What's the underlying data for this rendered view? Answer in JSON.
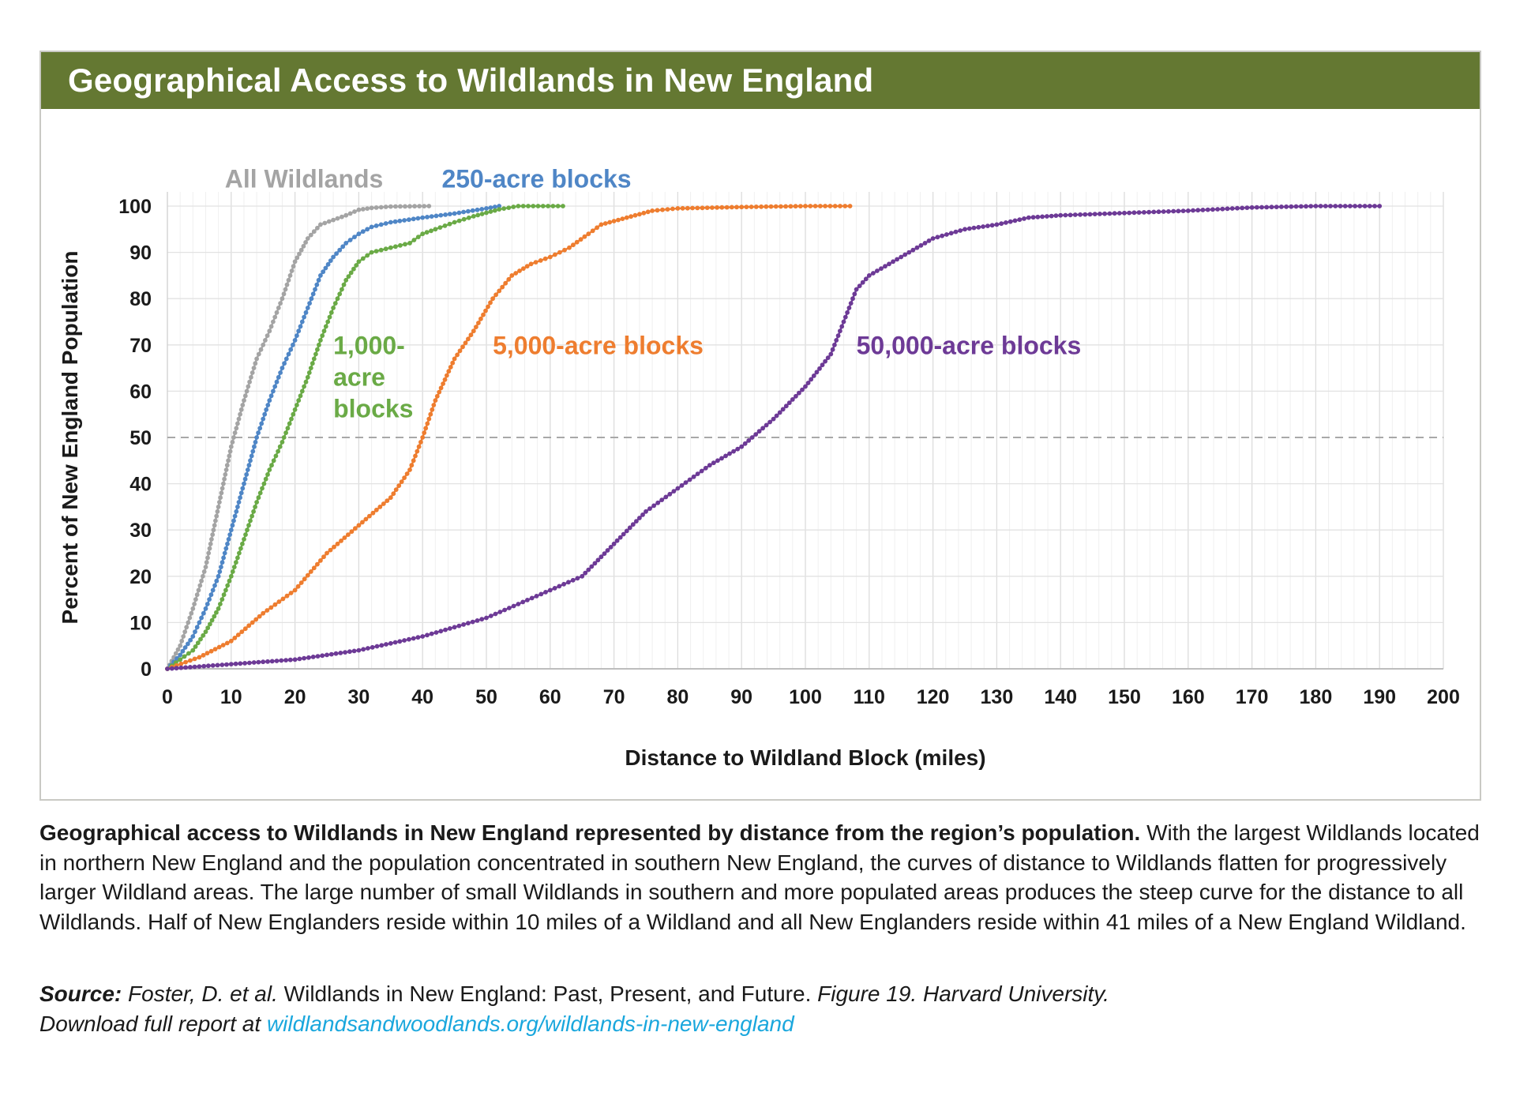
{
  "title": "Geographical Access to Wildlands in New England",
  "colors": {
    "title_bar": "#647832",
    "all_wildlands": "#a4a4a4",
    "b250": "#4f86c6",
    "b1000": "#6aaa46",
    "b5000": "#ee7d2f",
    "b50000": "#6d3a96",
    "link": "#1aa7dd"
  },
  "chart_data": {
    "type": "line",
    "title": "Geographical Access to Wildlands in New England",
    "xlabel": "Distance to Wildland Block (miles)",
    "ylabel": "Percent of New England Population",
    "xlim": [
      0,
      200
    ],
    "ylim": [
      0,
      100
    ],
    "x_ticks": [
      "0",
      "10",
      "20",
      "30",
      "40",
      "50",
      "60",
      "70",
      "80",
      "90",
      "100",
      "110",
      "120",
      "130",
      "140",
      "150",
      "160",
      "170",
      "180",
      "190",
      "200"
    ],
    "y_ticks": [
      "0",
      "10",
      "20",
      "30",
      "40",
      "50",
      "60",
      "70",
      "80",
      "90",
      "100"
    ],
    "grid": true,
    "reference_line": {
      "y": 50,
      "style": "dashed"
    },
    "series": [
      {
        "name": "All Wildlands",
        "label_lines": [
          "All Wildlands"
        ],
        "color": "#a4a4a4",
        "points": [
          [
            0,
            0
          ],
          [
            2,
            5
          ],
          [
            4,
            13
          ],
          [
            6,
            22
          ],
          [
            8,
            35
          ],
          [
            10,
            48
          ],
          [
            12,
            58
          ],
          [
            14,
            67
          ],
          [
            16,
            73
          ],
          [
            18,
            80
          ],
          [
            20,
            88
          ],
          [
            22,
            93
          ],
          [
            24,
            96
          ],
          [
            26,
            97
          ],
          [
            28,
            98
          ],
          [
            30,
            99.2
          ],
          [
            32,
            99.6
          ],
          [
            35,
            99.9
          ],
          [
            41,
            100
          ]
        ]
      },
      {
        "name": "250-acre blocks",
        "label_lines": [
          "250-acre blocks"
        ],
        "color": "#4f86c6",
        "points": [
          [
            0,
            0
          ],
          [
            2,
            3
          ],
          [
            4,
            7
          ],
          [
            6,
            13
          ],
          [
            8,
            20
          ],
          [
            10,
            30
          ],
          [
            12,
            40
          ],
          [
            14,
            50
          ],
          [
            16,
            58
          ],
          [
            18,
            65
          ],
          [
            20,
            71
          ],
          [
            22,
            78
          ],
          [
            24,
            85
          ],
          [
            26,
            89
          ],
          [
            28,
            92
          ],
          [
            30,
            94
          ],
          [
            32,
            95.5
          ],
          [
            35,
            96.5
          ],
          [
            40,
            97.5
          ],
          [
            45,
            98.4
          ],
          [
            50,
            99.5
          ],
          [
            52,
            100
          ]
        ]
      },
      {
        "name": "1,000-acre blocks",
        "label_lines": [
          "1,000-",
          "acre",
          "blocks"
        ],
        "color": "#6aaa46",
        "points": [
          [
            0,
            0
          ],
          [
            2,
            2
          ],
          [
            4,
            4
          ],
          [
            6,
            8
          ],
          [
            8,
            13
          ],
          [
            10,
            20
          ],
          [
            12,
            28
          ],
          [
            14,
            36
          ],
          [
            16,
            43
          ],
          [
            18,
            49
          ],
          [
            20,
            56
          ],
          [
            22,
            63
          ],
          [
            24,
            71
          ],
          [
            26,
            78
          ],
          [
            28,
            84
          ],
          [
            30,
            88
          ],
          [
            32,
            90
          ],
          [
            35,
            91
          ],
          [
            38,
            92
          ],
          [
            40,
            94
          ],
          [
            42,
            95
          ],
          [
            45,
            96.5
          ],
          [
            48,
            97.8
          ],
          [
            52,
            99.3
          ],
          [
            55,
            100
          ],
          [
            62,
            100
          ]
        ]
      },
      {
        "name": "5,000-acre blocks",
        "label_lines": [
          "5,000-acre blocks"
        ],
        "color": "#ee7d2f",
        "points": [
          [
            0,
            0
          ],
          [
            5,
            2.5
          ],
          [
            10,
            6
          ],
          [
            15,
            12
          ],
          [
            20,
            17
          ],
          [
            25,
            25
          ],
          [
            30,
            31
          ],
          [
            35,
            37
          ],
          [
            38,
            43
          ],
          [
            40,
            50
          ],
          [
            42,
            58
          ],
          [
            45,
            67
          ],
          [
            48,
            73
          ],
          [
            51,
            80
          ],
          [
            54,
            85
          ],
          [
            57,
            87.5
          ],
          [
            60,
            89
          ],
          [
            63,
            91
          ],
          [
            66,
            94
          ],
          [
            68,
            96
          ],
          [
            72,
            97.5
          ],
          [
            76,
            99
          ],
          [
            80,
            99.5
          ],
          [
            90,
            99.8
          ],
          [
            100,
            100
          ],
          [
            107,
            100
          ]
        ]
      },
      {
        "name": "50,000-acre blocks",
        "label_lines": [
          "50,000-acre blocks"
        ],
        "color": "#6d3a96",
        "points": [
          [
            0,
            0
          ],
          [
            10,
            1
          ],
          [
            20,
            2
          ],
          [
            30,
            4
          ],
          [
            40,
            7
          ],
          [
            50,
            11
          ],
          [
            55,
            14
          ],
          [
            60,
            17
          ],
          [
            65,
            20
          ],
          [
            70,
            27
          ],
          [
            75,
            34
          ],
          [
            80,
            39
          ],
          [
            85,
            44
          ],
          [
            90,
            48
          ],
          [
            95,
            54
          ],
          [
            100,
            61
          ],
          [
            104,
            68
          ],
          [
            106,
            75
          ],
          [
            108,
            82
          ],
          [
            110,
            85
          ],
          [
            115,
            89
          ],
          [
            120,
            93
          ],
          [
            125,
            95
          ],
          [
            130,
            96
          ],
          [
            135,
            97.5
          ],
          [
            140,
            98
          ],
          [
            150,
            98.5
          ],
          [
            160,
            99
          ],
          [
            170,
            99.7
          ],
          [
            180,
            100
          ],
          [
            190,
            100
          ]
        ]
      }
    ]
  },
  "caption": {
    "bold": "Geographical access to Wildlands in New England represented by distance from the region’s population.",
    "text": " With the largest Wildlands located in northern New England and the population concentrated in southern New England, the curves of distance to Wildlands flatten for progressively larger Wildland areas. The large number of small Wildlands in southern and more populated areas produces the steep curve for the distance to all Wildlands. Half of New Englanders reside within 10 miles of a Wildland and all New Englanders reside within 41 miles of a New England Wildland."
  },
  "source": {
    "label": "Source:",
    "authors": " Foster, D. et al.",
    "report": " Wildlands in New England: Past, Present, and Future.",
    "figure": " Figure 19. Harvard University.",
    "download": "Download full report at ",
    "link": "wildlandsandwoodlands.org/wildlands-in-new-england"
  }
}
